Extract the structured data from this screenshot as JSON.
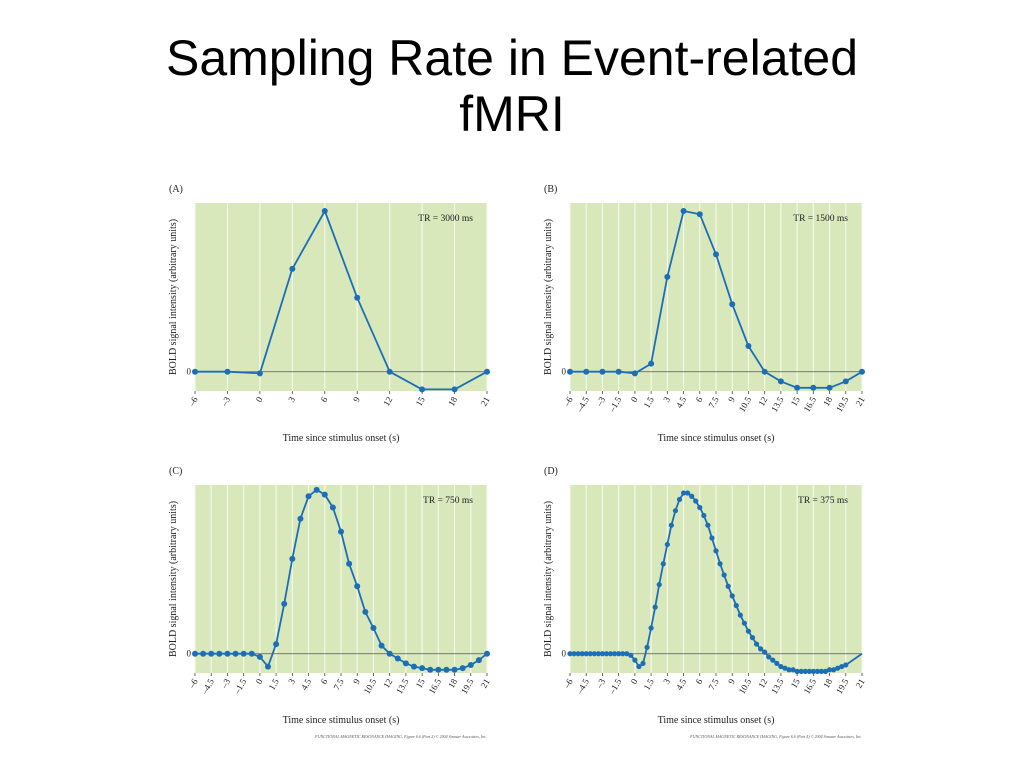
{
  "slide": {
    "title_line1": "Sampling Rate in Event-related",
    "title_line2": "fMRI"
  },
  "colors": {
    "plot_bg": "#d8e8bb",
    "grid": "#f4f8ea",
    "line": "#1d6eb8",
    "zero_line": "#555555"
  },
  "chart_data": [
    {
      "panel": "(A)",
      "type": "line",
      "title": "TR = 3000 ms",
      "xlabel": "Time since stimulus onset (s)",
      "ylabel": "BOLD signal intensity (arbitrary units)",
      "ytick_label": "0",
      "xticks": [
        "–6",
        "–3",
        "0",
        "3",
        "6",
        "9",
        "12",
        "15",
        "18",
        "21"
      ],
      "xlim": [
        -6,
        21
      ],
      "ylim": [
        -1.2,
        10.5
      ],
      "grid": true,
      "x": [
        -6,
        -3,
        0,
        3,
        6,
        9,
        12,
        15,
        18,
        21
      ],
      "y": [
        0,
        0,
        -0.1,
        6.4,
        10,
        4.6,
        0,
        -1.1,
        -1.1,
        0
      ],
      "footer": ""
    },
    {
      "panel": "(B)",
      "type": "line",
      "title": "TR = 1500 ms",
      "xlabel": "Time since stimulus onset (s)",
      "ylabel": "BOLD signal intensity (arbitrary units)",
      "ytick_label": "0",
      "xticks": [
        "–6",
        "–4.5",
        "–3",
        "–1.5",
        "0",
        "1.5",
        "3",
        "4.5",
        "6",
        "7.5",
        "9",
        "10.5",
        "12",
        "13.5",
        "15",
        "16.5",
        "18",
        "19.5",
        "21"
      ],
      "xlim": [
        -6,
        21
      ],
      "ylim": [
        -1.2,
        10.5
      ],
      "grid": true,
      "x": [
        -6,
        -4.5,
        -3,
        -1.5,
        0,
        1.5,
        3,
        4.5,
        6,
        7.5,
        9,
        10.5,
        12,
        13.5,
        15,
        16.5,
        18,
        19.5,
        21
      ],
      "y": [
        0,
        0,
        0,
        0,
        -0.1,
        0.5,
        5.9,
        10,
        9.8,
        7.3,
        4.2,
        1.6,
        0,
        -0.6,
        -1,
        -1,
        -1,
        -0.6,
        0
      ],
      "footer": ""
    },
    {
      "panel": "(C)",
      "type": "line",
      "title": "TR = 750 ms",
      "xlabel": "Time since stimulus onset (s)",
      "ylabel": "BOLD signal intensity (arbitrary units)",
      "ytick_label": "0",
      "xticks": [
        "–6",
        "–4.5",
        "–3",
        "–1.5",
        "0",
        "1.5",
        "3",
        "4.5",
        "6",
        "7.5",
        "9",
        "10.5",
        "12",
        "13.5",
        "15",
        "16.5",
        "18",
        "19.5",
        "21"
      ],
      "xlim": [
        -6,
        21
      ],
      "ylim": [
        -1.2,
        10.5
      ],
      "grid": true,
      "x": [
        -6,
        -5.25,
        -4.5,
        -3.75,
        -3,
        -2.25,
        -1.5,
        -0.75,
        0,
        0.75,
        1.5,
        2.25,
        3,
        3.75,
        4.5,
        5.25,
        6,
        6.75,
        7.5,
        8.25,
        9,
        9.75,
        10.5,
        11.25,
        12,
        12.75,
        13.5,
        14.25,
        15,
        15.75,
        16.5,
        17.25,
        18,
        18.75,
        19.5,
        20.25,
        21
      ],
      "y": [
        0,
        0,
        0,
        0,
        0,
        0,
        0,
        0,
        -0.2,
        -0.8,
        0.6,
        3.1,
        5.9,
        8.4,
        9.8,
        10.2,
        9.9,
        9.1,
        7.6,
        5.6,
        4.2,
        2.6,
        1.6,
        0.5,
        0,
        -0.3,
        -0.6,
        -0.8,
        -0.9,
        -1,
        -1,
        -1,
        -1,
        -0.9,
        -0.7,
        -0.4,
        0
      ],
      "footer": "FUNCTIONAL MAGNETIC RESONANCE IMAGING, Figure 6.6 (Part 2) © 2004 Sinauer Associates, Inc."
    },
    {
      "panel": "(D)",
      "type": "line",
      "title": "TR = 375 ms",
      "xlabel": "Time since stimulus onset (s)",
      "ylabel": "BOLD signal intensity (arbitrary units)",
      "ytick_label": "0",
      "xticks": [
        "–6",
        "–4.5",
        "–3",
        "–1.5",
        "0",
        "1.5",
        "3",
        "4.5",
        "6",
        "7.5",
        "9",
        "10.5",
        "12",
        "13.5",
        "15",
        "16.5",
        "18",
        "19.5",
        "21"
      ],
      "xlim": [
        -6,
        21
      ],
      "ylim": [
        -1.2,
        10.5
      ],
      "grid": true,
      "x": [
        -6,
        -5.625,
        -5.25,
        -4.875,
        -4.5,
        -4.125,
        -3.75,
        -3.375,
        -3,
        -2.625,
        -2.25,
        -1.875,
        -1.5,
        -1.125,
        -0.75,
        -0.375,
        0,
        0.375,
        0.75,
        1.125,
        1.5,
        1.875,
        2.25,
        2.625,
        3,
        3.375,
        3.75,
        4.125,
        4.5,
        4.875,
        5.25,
        5.625,
        6,
        6.375,
        6.75,
        7.125,
        7.5,
        7.875,
        8.25,
        8.625,
        9,
        9.375,
        9.75,
        10.125,
        10.5,
        10.875,
        11.25,
        11.625,
        12,
        12.375,
        12.75,
        13.125,
        13.5,
        13.875,
        14.25,
        14.625,
        15,
        15.375,
        15.75,
        16.125,
        16.5,
        16.875,
        17.25,
        17.625,
        18,
        18.375,
        18.75,
        19.125,
        19.5,
        21
      ],
      "y": [
        0,
        0,
        0,
        0,
        0,
        0,
        0,
        0,
        0,
        0,
        0,
        0,
        0,
        0,
        0,
        -0.1,
        -0.4,
        -0.8,
        -0.6,
        0.4,
        1.6,
        2.9,
        4.3,
        5.6,
        6.8,
        8.0,
        8.9,
        9.6,
        10.0,
        10.0,
        9.8,
        9.5,
        9.1,
        8.6,
        8.0,
        7.2,
        6.4,
        5.6,
        4.9,
        4.2,
        3.6,
        3.0,
        2.4,
        1.9,
        1.4,
        1.0,
        0.6,
        0.3,
        0.1,
        -0.2,
        -0.4,
        -0.6,
        -0.8,
        -0.9,
        -1.0,
        -1.0,
        -1.1,
        -1.1,
        -1.1,
        -1.1,
        -1.1,
        -1.1,
        -1.1,
        -1.1,
        -1.0,
        -1.0,
        -0.9,
        -0.8,
        -0.7,
        0
      ],
      "footer": "FUNCTIONAL MAGNETIC RESONANCE IMAGING, Figure 6.6 (Part 4) © 2004 Sinauer Associates, Inc."
    }
  ]
}
